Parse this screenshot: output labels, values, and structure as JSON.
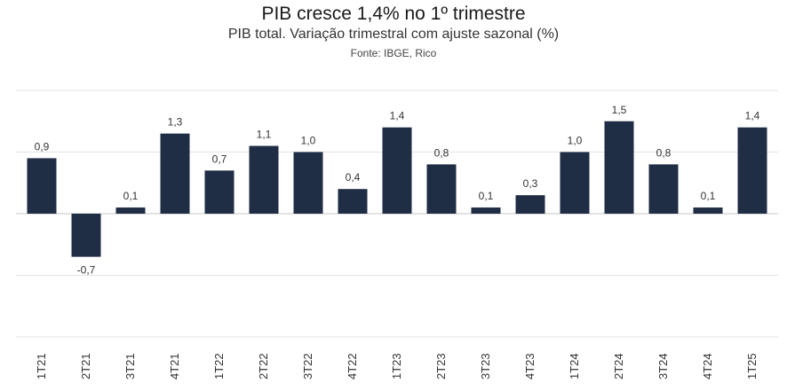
{
  "chart_data": {
    "type": "bar",
    "title": "PIB cresce 1,4% no 1º trimestre",
    "subtitle": "PIB total. Variação trimestral com ajuste sazonal (%)",
    "source": "Fonte: IBGE, Rico",
    "categories": [
      "1T21",
      "2T21",
      "3T21",
      "4T21",
      "1T22",
      "2T22",
      "3T22",
      "4T22",
      "1T23",
      "2T23",
      "3T23",
      "4T23",
      "1T24",
      "2T24",
      "3T24",
      "4T24",
      "1T25"
    ],
    "values": [
      0.9,
      -0.7,
      0.1,
      1.3,
      0.7,
      1.1,
      1.0,
      0.4,
      1.4,
      0.8,
      0.1,
      0.3,
      1.0,
      1.5,
      0.8,
      0.1,
      1.4
    ],
    "labels": [
      "0,9",
      "-0,7",
      "0,1",
      "1,3",
      "0,7",
      "1,1",
      "1,0",
      "0,4",
      "1,4",
      "0,8",
      "0,1",
      "0,3",
      "1,0",
      "1,5",
      "0,8",
      "0,1",
      "1,4"
    ],
    "ylim": [
      -2.0,
      2.0
    ],
    "grid": true,
    "bar_color": "#1f2d45"
  }
}
